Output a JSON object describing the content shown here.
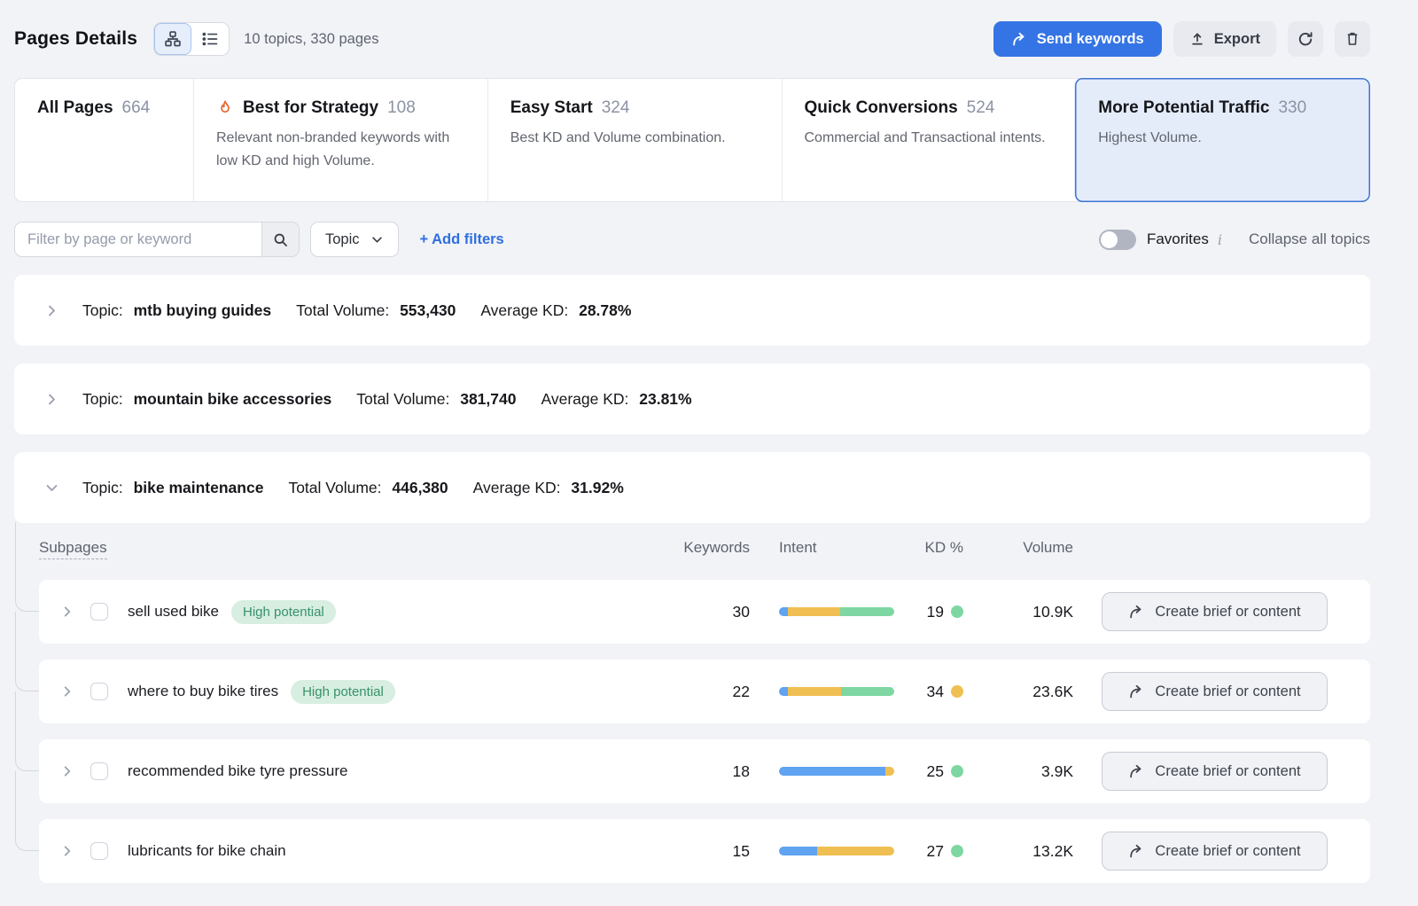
{
  "topbar": {
    "title": "Pages Details",
    "summary": "10 topics, 330 pages",
    "send_keywords": "Send keywords",
    "export": "Export"
  },
  "tabs": [
    {
      "label": "All Pages",
      "count": "664",
      "description": "",
      "flame": false,
      "selected": false
    },
    {
      "label": "Best for Strategy",
      "count": "108",
      "description": "Relevant non-branded keywords with low KD and high Volume.",
      "flame": true,
      "selected": false
    },
    {
      "label": "Easy Start",
      "count": "324",
      "description": "Best KD and Volume combination.",
      "flame": false,
      "selected": false
    },
    {
      "label": "Quick Conversions",
      "count": "524",
      "description": "Commercial and Transactional intents.",
      "flame": false,
      "selected": false
    },
    {
      "label": "More Potential Traffic",
      "count": "330",
      "description": "Highest Volume.",
      "flame": false,
      "selected": true
    }
  ],
  "filterbar": {
    "search_placeholder": "Filter by page or keyword",
    "topic_label": "Topic",
    "add_filters": "+ Add filters",
    "favorites": "Favorites",
    "info": "i",
    "collapse_all": "Collapse all topics"
  },
  "labels": {
    "topic_prefix": "Topic:",
    "total_volume": "Total Volume:",
    "average_kd": "Average KD:",
    "action": "Create brief or content"
  },
  "topics": [
    {
      "name": "mtb buying guides",
      "total_volume": "553,430",
      "average_kd": "28.78%",
      "expanded": false
    },
    {
      "name": "mountain bike accessories",
      "total_volume": "381,740",
      "average_kd": "23.81%",
      "expanded": false
    },
    {
      "name": "bike maintenance",
      "total_volume": "446,380",
      "average_kd": "31.92%",
      "expanded": true
    }
  ],
  "table": {
    "columns": {
      "subpages": "Subpages",
      "keywords": "Keywords",
      "intent": "Intent",
      "kd": "KD %",
      "volume": "Volume"
    },
    "rows": [
      {
        "name": "sell used bike",
        "badge": "High potential",
        "keywords": "30",
        "intent": [
          {
            "color": "blue",
            "pct": 8
          },
          {
            "color": "yellow",
            "pct": 45
          },
          {
            "color": "green",
            "pct": 47
          }
        ],
        "kd": "19",
        "kd_color": "green",
        "volume": "10.9K"
      },
      {
        "name": "where to buy bike tires",
        "badge": "High potential",
        "keywords": "22",
        "intent": [
          {
            "color": "blue",
            "pct": 8
          },
          {
            "color": "yellow",
            "pct": 46
          },
          {
            "color": "green",
            "pct": 46
          }
        ],
        "kd": "34",
        "kd_color": "yellow",
        "volume": "23.6K"
      },
      {
        "name": "recommended bike tyre pressure",
        "badge": null,
        "keywords": "18",
        "intent": [
          {
            "color": "blue",
            "pct": 92
          },
          {
            "color": "yellow",
            "pct": 8
          }
        ],
        "kd": "25",
        "kd_color": "green",
        "volume": "3.9K"
      },
      {
        "name": "lubricants for bike chain",
        "badge": null,
        "keywords": "15",
        "intent": [
          {
            "color": "blue",
            "pct": 33
          },
          {
            "color": "yellow",
            "pct": 67
          }
        ],
        "kd": "27",
        "kd_color": "green",
        "volume": "13.2K"
      }
    ]
  },
  "colors": {
    "accent_blue": "#3574e4",
    "intent_blue": "#5fa3f1",
    "intent_yellow": "#f0bf52",
    "intent_green": "#7ed7a2",
    "badge_bg": "#d7eee1",
    "badge_text": "#38926a",
    "flame": "#e8642c"
  }
}
